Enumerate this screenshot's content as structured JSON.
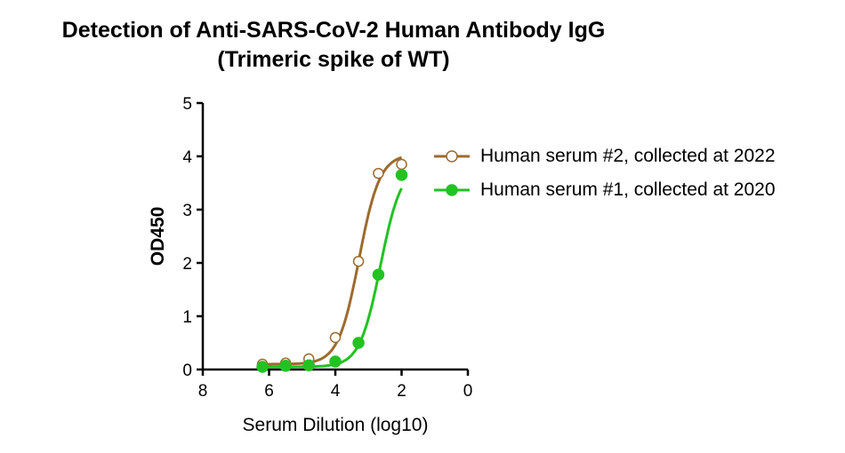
{
  "chart_data": {
    "type": "scatter",
    "title": "Detection of Anti-SARS-CoV-2 Human Antibody IgG",
    "subtitle": "(Trimeric spike of WT)",
    "xlabel": "Serum Dilution (log10)",
    "ylabel": "OD450",
    "xlim": [
      8,
      0
    ],
    "ylim": [
      0,
      5
    ],
    "x_reversed": true,
    "x_ticks": [
      "8",
      "6",
      "4",
      "2",
      "0"
    ],
    "y_ticks": [
      "0",
      "1",
      "2",
      "3",
      "4",
      "5"
    ],
    "grid": false,
    "legend_position": "right",
    "series": [
      {
        "name": "Human serum #2, collected at 2022",
        "color": "#9C6B2E",
        "marker": "open-circle",
        "x": [
          6.2,
          5.5,
          4.8,
          4.0,
          3.3,
          2.7,
          2.0
        ],
        "y": [
          0.1,
          0.12,
          0.2,
          0.6,
          2.03,
          3.68,
          3.85
        ]
      },
      {
        "name": "Human serum #1, collected at 2020",
        "color": "#22C222",
        "marker": "filled-circle",
        "x": [
          6.2,
          5.5,
          4.8,
          4.0,
          3.3,
          2.7,
          2.0
        ],
        "y": [
          0.05,
          0.07,
          0.08,
          0.15,
          0.5,
          1.78,
          3.65
        ]
      }
    ]
  }
}
